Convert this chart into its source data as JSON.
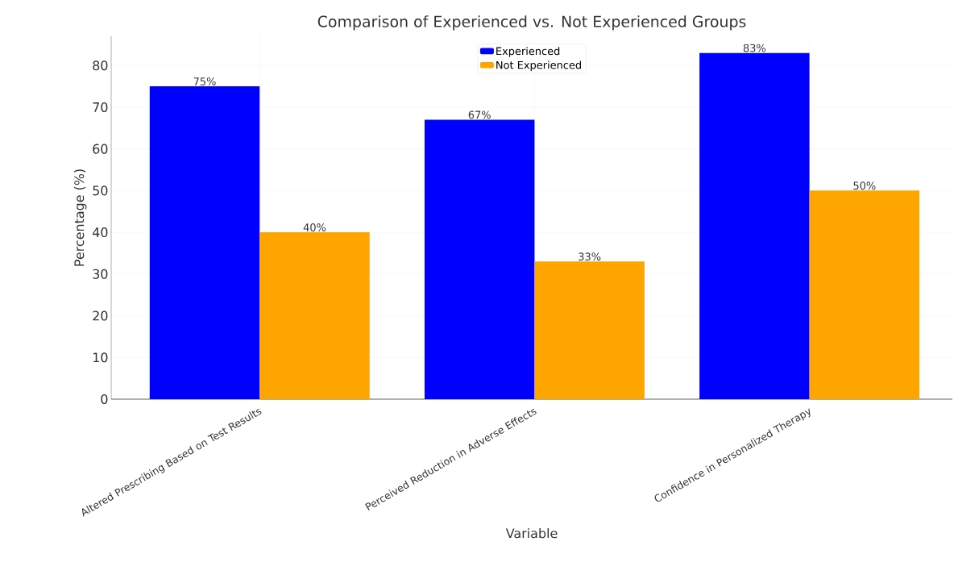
{
  "chart_data": {
    "type": "bar",
    "title": "Comparison of Experienced vs. Not Experienced Groups",
    "xlabel": "Variable",
    "ylabel": "Percentage (%)",
    "categories": [
      "Altered Prescribing Based on Test Results",
      "Perceived Reduction in Adverse Effects",
      "Confidence in Personalized Therapy"
    ],
    "series": [
      {
        "name": "Experienced",
        "color": "#0000ff",
        "values": [
          75,
          67,
          83
        ],
        "value_labels": [
          "75%",
          "67%",
          "83%"
        ]
      },
      {
        "name": "Not Experienced",
        "color": "#ffa500",
        "values": [
          40,
          33,
          50
        ],
        "value_labels": [
          "40%",
          "33%",
          "50%"
        ]
      }
    ],
    "ylim": [
      0,
      87
    ],
    "yticks": [
      0,
      10,
      20,
      30,
      40,
      50,
      60,
      70,
      80
    ],
    "grid": true,
    "legend": "top"
  }
}
